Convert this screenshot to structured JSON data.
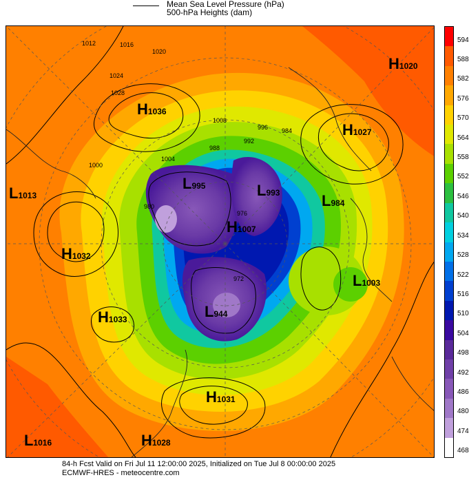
{
  "legend": {
    "line1": "Mean Sea Level Pressure (hPa)",
    "line2": "500-hPa Heights (dam)"
  },
  "colorbar": {
    "levels": [
      "594",
      "588",
      "582",
      "576",
      "570",
      "564",
      "558",
      "552",
      "546",
      "540",
      "534",
      "528",
      "522",
      "516",
      "510",
      "504",
      "498",
      "492",
      "486",
      "480",
      "474",
      "468"
    ],
    "colors": [
      "#ff0000",
      "#ff5a00",
      "#ff8000",
      "#ffa800",
      "#ffd200",
      "#e0e800",
      "#a8e000",
      "#5cd000",
      "#2cc040",
      "#10c8a0",
      "#00d0e0",
      "#00a8f0",
      "#0070e8",
      "#0040d0",
      "#0018b0",
      "#3a0aa0",
      "#5a2a9a",
      "#7040a8",
      "#8858b8",
      "#a078c8",
      "#c0a0dc",
      "#ffffff"
    ]
  },
  "systems": [
    {
      "letter": "H",
      "value": "1036"
    },
    {
      "letter": "H",
      "value": "1020"
    },
    {
      "letter": "H",
      "value": "1027"
    },
    {
      "letter": "L",
      "value": "1013"
    },
    {
      "letter": "L",
      "value": "995"
    },
    {
      "letter": "L",
      "value": "993"
    },
    {
      "letter": "L",
      "value": "984"
    },
    {
      "letter": "H",
      "value": "1007"
    },
    {
      "letter": "H",
      "value": "1032"
    },
    {
      "letter": "L",
      "value": "1003"
    },
    {
      "letter": "H",
      "value": "1033"
    },
    {
      "letter": "L",
      "value": "944"
    },
    {
      "letter": "H",
      "value": "1031"
    },
    {
      "letter": "L",
      "value": "1016"
    },
    {
      "letter": "H",
      "value": "1028"
    }
  ],
  "isobar_labels": [
    "1012",
    "1016",
    "1020",
    "1024",
    "1028",
    "1008",
    "1004",
    "1000",
    "996",
    "992",
    "988",
    "984",
    "980",
    "976",
    "972"
  ],
  "footer": {
    "line1": "84-h Fcst Valid on Fri Jul 11 12:00:00 2025, Initialized on Tue Jul  8 00:00:00 2025",
    "line2": "ECMWF-HRES  - meteocentre.com"
  }
}
